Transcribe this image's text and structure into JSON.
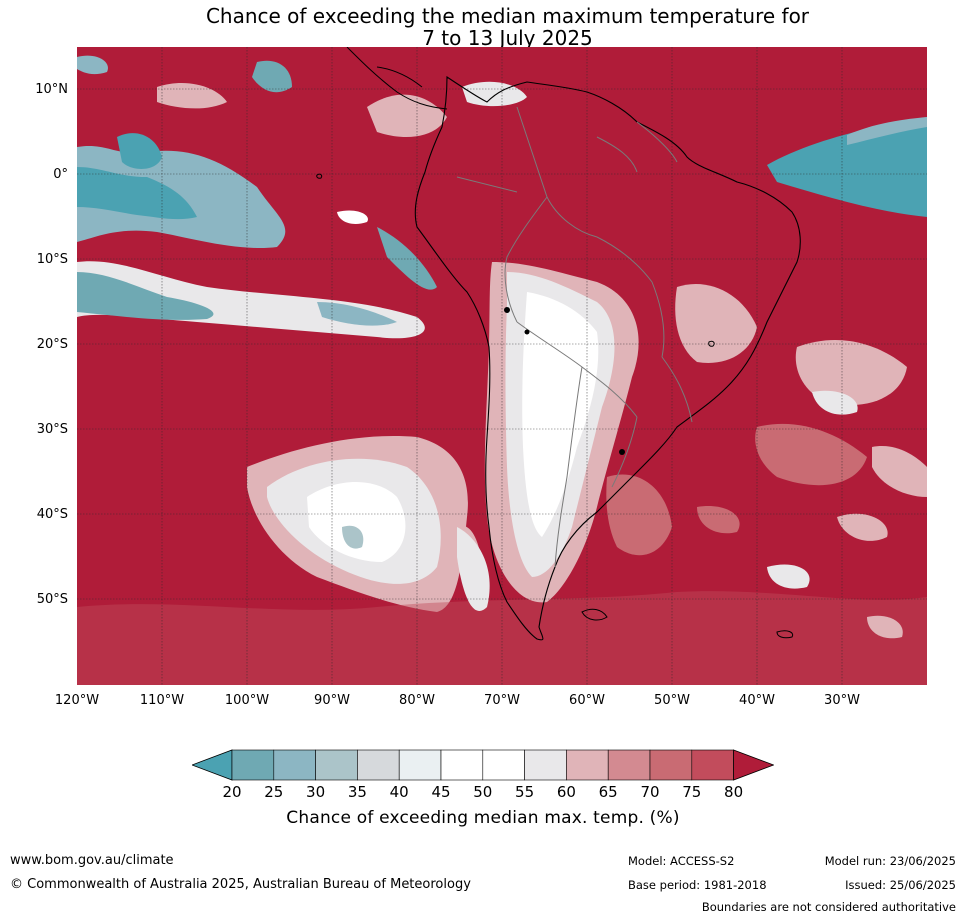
{
  "title": {
    "line1": "Chance of exceeding the median maximum temperature for",
    "line2": "7 to 13 July 2025"
  },
  "map": {
    "lat_labels": [
      "10°N",
      "0°",
      "10°S",
      "20°S",
      "30°S",
      "40°S",
      "50°S"
    ],
    "lon_labels": [
      "120°W",
      "110°W",
      "100°W",
      "90°W",
      "80°W",
      "70°W",
      "60°W",
      "50°W",
      "40°W",
      "30°W"
    ],
    "lat_range": [
      15,
      -60
    ],
    "lon_range": [
      -120,
      -20
    ],
    "colors": {
      "very_high": "#b01c39",
      "high": "#c24c5c",
      "mid_high": "#cd7078",
      "mid": "#e0b4b8",
      "neutral": "#ffffff",
      "low": "#6fa9b3",
      "very_low": "#4ba2b2"
    }
  },
  "colorbar": {
    "ticks": [
      "20",
      "25",
      "30",
      "35",
      "40",
      "45",
      "50",
      "55",
      "60",
      "65",
      "70",
      "75",
      "80"
    ],
    "colors": [
      "#4ba2b2",
      "#6fa9b3",
      "#8cb6c3",
      "#abc4c9",
      "#d6d9dc",
      "#eaf0f2",
      "#ffffff",
      "#ffffff",
      "#e9e8ea",
      "#e0b4b8",
      "#d38a91",
      "#c96b73",
      "#c24c5c",
      "#b01c39"
    ],
    "label": "Chance of exceeding median max. temp. (%)"
  },
  "footer": {
    "website": "www.bom.gov.au/climate",
    "copyright": "© Commonwealth of Australia 2025, Australian Bureau of Meteorology",
    "model": "Model: ACCESS-S2",
    "base_period": "Base period: 1981-2018",
    "model_run": "Model run: 23/06/2025",
    "issued": "Issued: 25/06/2025",
    "disclaimer": "Boundaries are not considered authoritative"
  }
}
